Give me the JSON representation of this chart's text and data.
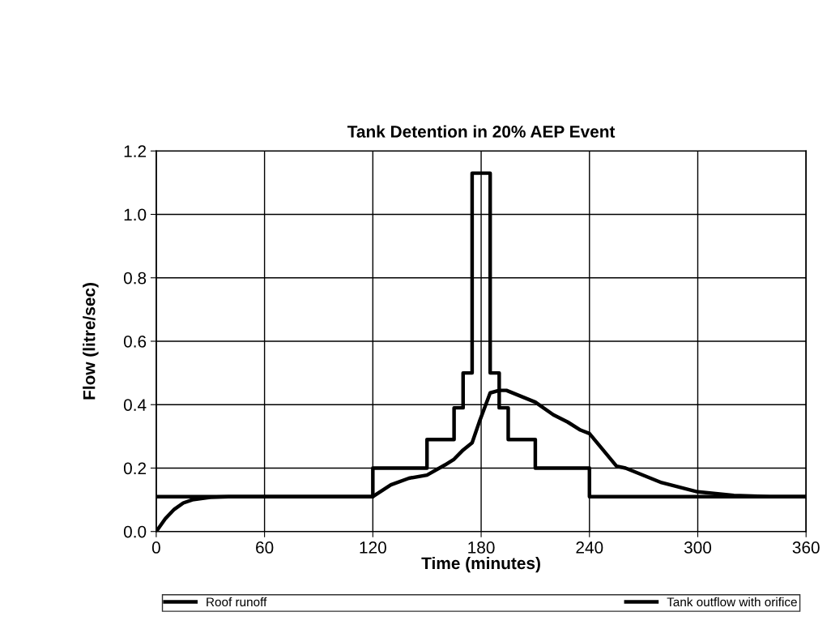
{
  "chart_data": {
    "type": "line",
    "title": "Tank Detention in 20% AEP Event",
    "xlabel": "Time (minutes)",
    "ylabel": "Flow (litre/sec)",
    "series": [
      {
        "name": "Roof runoff",
        "type": "step",
        "color": "#000000",
        "x": [
          0,
          120,
          150,
          165,
          170,
          175,
          185,
          190,
          195,
          210,
          240,
          360
        ],
        "values": [
          0.11,
          0.2,
          0.29,
          0.39,
          0.5,
          1.13,
          0.5,
          0.39,
          0.29,
          0.2,
          0.11,
          0.11
        ]
      },
      {
        "name": "Tank outflow with orifice",
        "color": "#000000",
        "x": [
          0,
          5,
          10,
          15,
          20,
          30,
          40,
          120,
          130,
          140,
          150,
          160,
          165,
          170,
          175,
          179,
          185,
          190,
          194,
          210,
          220,
          228,
          235,
          240,
          255,
          260,
          280,
          300,
          320,
          340,
          360
        ],
        "values": [
          0,
          0.04,
          0.07,
          0.09,
          0.1,
          0.108,
          0.11,
          0.11,
          0.147,
          0.168,
          0.178,
          0.21,
          0.228,
          0.257,
          0.28,
          0.346,
          0.437,
          0.445,
          0.445,
          0.408,
          0.368,
          0.345,
          0.32,
          0.309,
          0.206,
          0.2,
          0.154,
          0.125,
          0.114,
          0.11,
          0.11
        ]
      }
    ],
    "xlim": [
      0,
      360
    ],
    "xticks": [
      0,
      60,
      120,
      180,
      240,
      300,
      360
    ],
    "ylim": [
      0,
      1.2
    ],
    "yticks": [
      {
        "value": 0,
        "label": "0.0"
      },
      0.2,
      0.4,
      0.6,
      0.8,
      {
        "value": 1.0,
        "label": "1.0"
      },
      1.2
    ],
    "grid": true,
    "legend": "bottom",
    "line_style": "solid",
    "marker": "none"
  }
}
